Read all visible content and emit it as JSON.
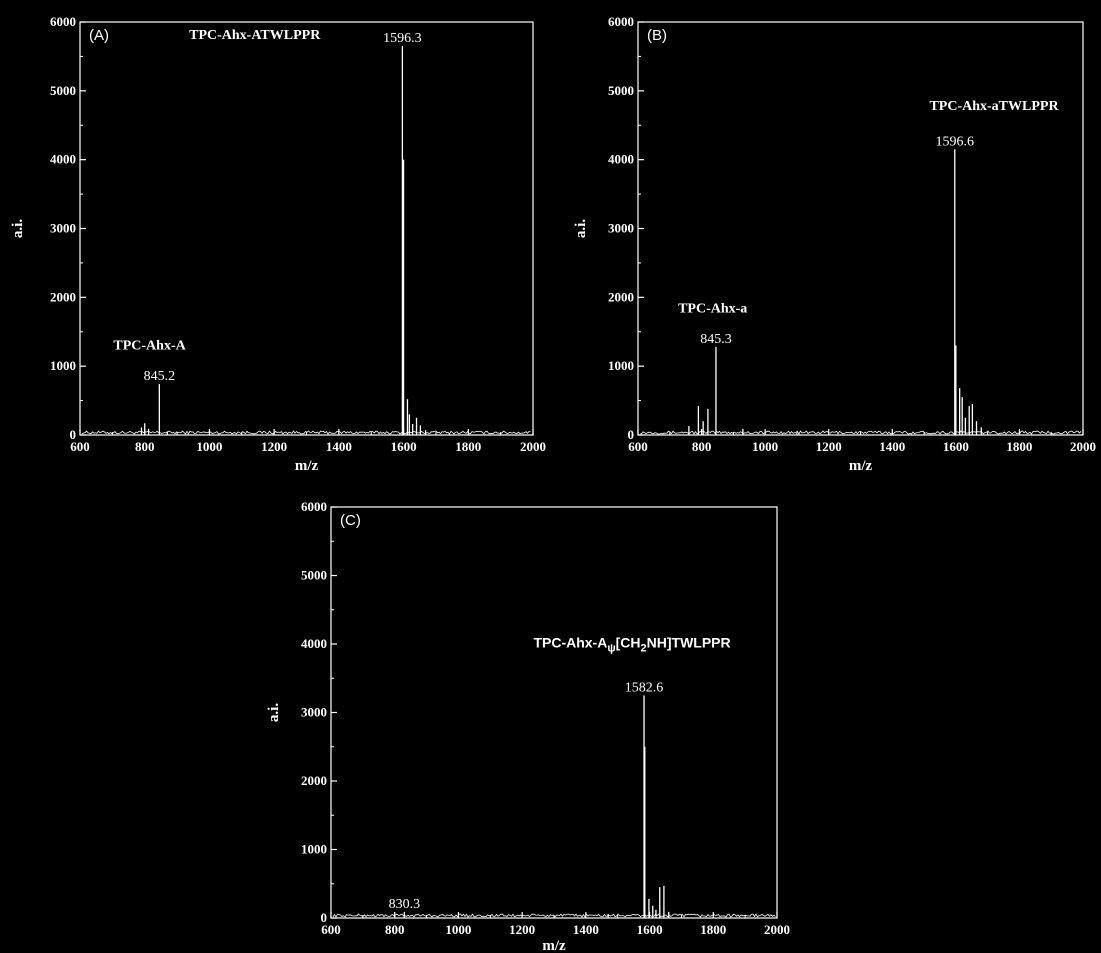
{
  "chart_data": [
    {
      "type": "line",
      "panel": "(A)",
      "xlabel": "m/z",
      "ylabel": "a.i.",
      "xlim": [
        600,
        2000
      ],
      "ylim": [
        0,
        6000
      ],
      "x_ticks": [
        600,
        800,
        1000,
        1200,
        1400,
        1600,
        1800,
        2000
      ],
      "y_ticks": [
        0,
        1000,
        2000,
        3000,
        4000,
        5000,
        6000
      ],
      "peaks": [
        {
          "x": 790,
          "y": 110
        },
        {
          "x": 800,
          "y": 170
        },
        {
          "x": 812,
          "y": 90
        },
        {
          "x": 845.2,
          "y": 740,
          "label": "845.2"
        },
        {
          "x": 870,
          "y": 50
        },
        {
          "x": 1596.3,
          "y": 5650,
          "label": "1596.3"
        },
        {
          "x": 1600,
          "y": 4000
        },
        {
          "x": 1612,
          "y": 520
        },
        {
          "x": 1618,
          "y": 300
        },
        {
          "x": 1628,
          "y": 160
        },
        {
          "x": 1640,
          "y": 250
        },
        {
          "x": 1652,
          "y": 140
        },
        {
          "x": 1668,
          "y": 70
        }
      ],
      "annotations": [
        {
          "text": "TPC-Ahx-ATWLPPR",
          "x": 1140,
          "y": 5750
        },
        {
          "text": "TPC-Ahx-A",
          "x": 815,
          "y": 1240
        }
      ]
    },
    {
      "type": "line",
      "panel": "(B)",
      "xlabel": "m/z",
      "ylabel": "a.i.",
      "xlim": [
        600,
        2000
      ],
      "ylim": [
        0,
        6000
      ],
      "x_ticks": [
        600,
        800,
        1000,
        1200,
        1400,
        1600,
        1800,
        2000
      ],
      "y_ticks": [
        0,
        1000,
        2000,
        3000,
        4000,
        5000,
        6000
      ],
      "peaks": [
        {
          "x": 760,
          "y": 130
        },
        {
          "x": 790,
          "y": 420
        },
        {
          "x": 805,
          "y": 200
        },
        {
          "x": 820,
          "y": 380
        },
        {
          "x": 845.3,
          "y": 1280,
          "label": "845.3"
        },
        {
          "x": 930,
          "y": 90
        },
        {
          "x": 1596.6,
          "y": 4150,
          "label": "1596.6"
        },
        {
          "x": 1600,
          "y": 1300
        },
        {
          "x": 1612,
          "y": 680
        },
        {
          "x": 1620,
          "y": 550
        },
        {
          "x": 1630,
          "y": 250
        },
        {
          "x": 1642,
          "y": 420
        },
        {
          "x": 1652,
          "y": 450
        },
        {
          "x": 1665,
          "y": 200
        },
        {
          "x": 1680,
          "y": 110
        }
      ],
      "annotations": [
        {
          "text": "TPC-Ahx-aTWLPPR",
          "x": 1720,
          "y": 4720
        },
        {
          "text": "TPC-Ahx-a",
          "x": 835,
          "y": 1780
        }
      ]
    },
    {
      "type": "line",
      "panel": "(C)",
      "xlabel": "m/z",
      "ylabel": "a.i.",
      "xlim": [
        600,
        2000
      ],
      "ylim": [
        0,
        6000
      ],
      "x_ticks": [
        600,
        800,
        1000,
        1200,
        1400,
        1600,
        1800,
        2000
      ],
      "y_ticks": [
        0,
        1000,
        2000,
        3000,
        4000,
        5000,
        6000
      ],
      "peaks": [
        {
          "x": 800,
          "y": 40
        },
        {
          "x": 830.3,
          "y": 90,
          "label": "830.3"
        },
        {
          "x": 1470,
          "y": 60
        },
        {
          "x": 1582.6,
          "y": 3250,
          "label": "1582.6"
        },
        {
          "x": 1585,
          "y": 2500
        },
        {
          "x": 1598,
          "y": 280
        },
        {
          "x": 1610,
          "y": 180
        },
        {
          "x": 1620,
          "y": 120
        },
        {
          "x": 1632,
          "y": 450
        },
        {
          "x": 1645,
          "y": 470
        },
        {
          "x": 1660,
          "y": 90
        }
      ],
      "annotations": [
        {
          "text": "TPC-Ahx-A",
          "sub": "ψ",
          "rest": "[CH",
          "sub2": "2",
          "rest2": "NH]TWLPPR",
          "x": 1545,
          "y": 3950
        }
      ]
    }
  ]
}
